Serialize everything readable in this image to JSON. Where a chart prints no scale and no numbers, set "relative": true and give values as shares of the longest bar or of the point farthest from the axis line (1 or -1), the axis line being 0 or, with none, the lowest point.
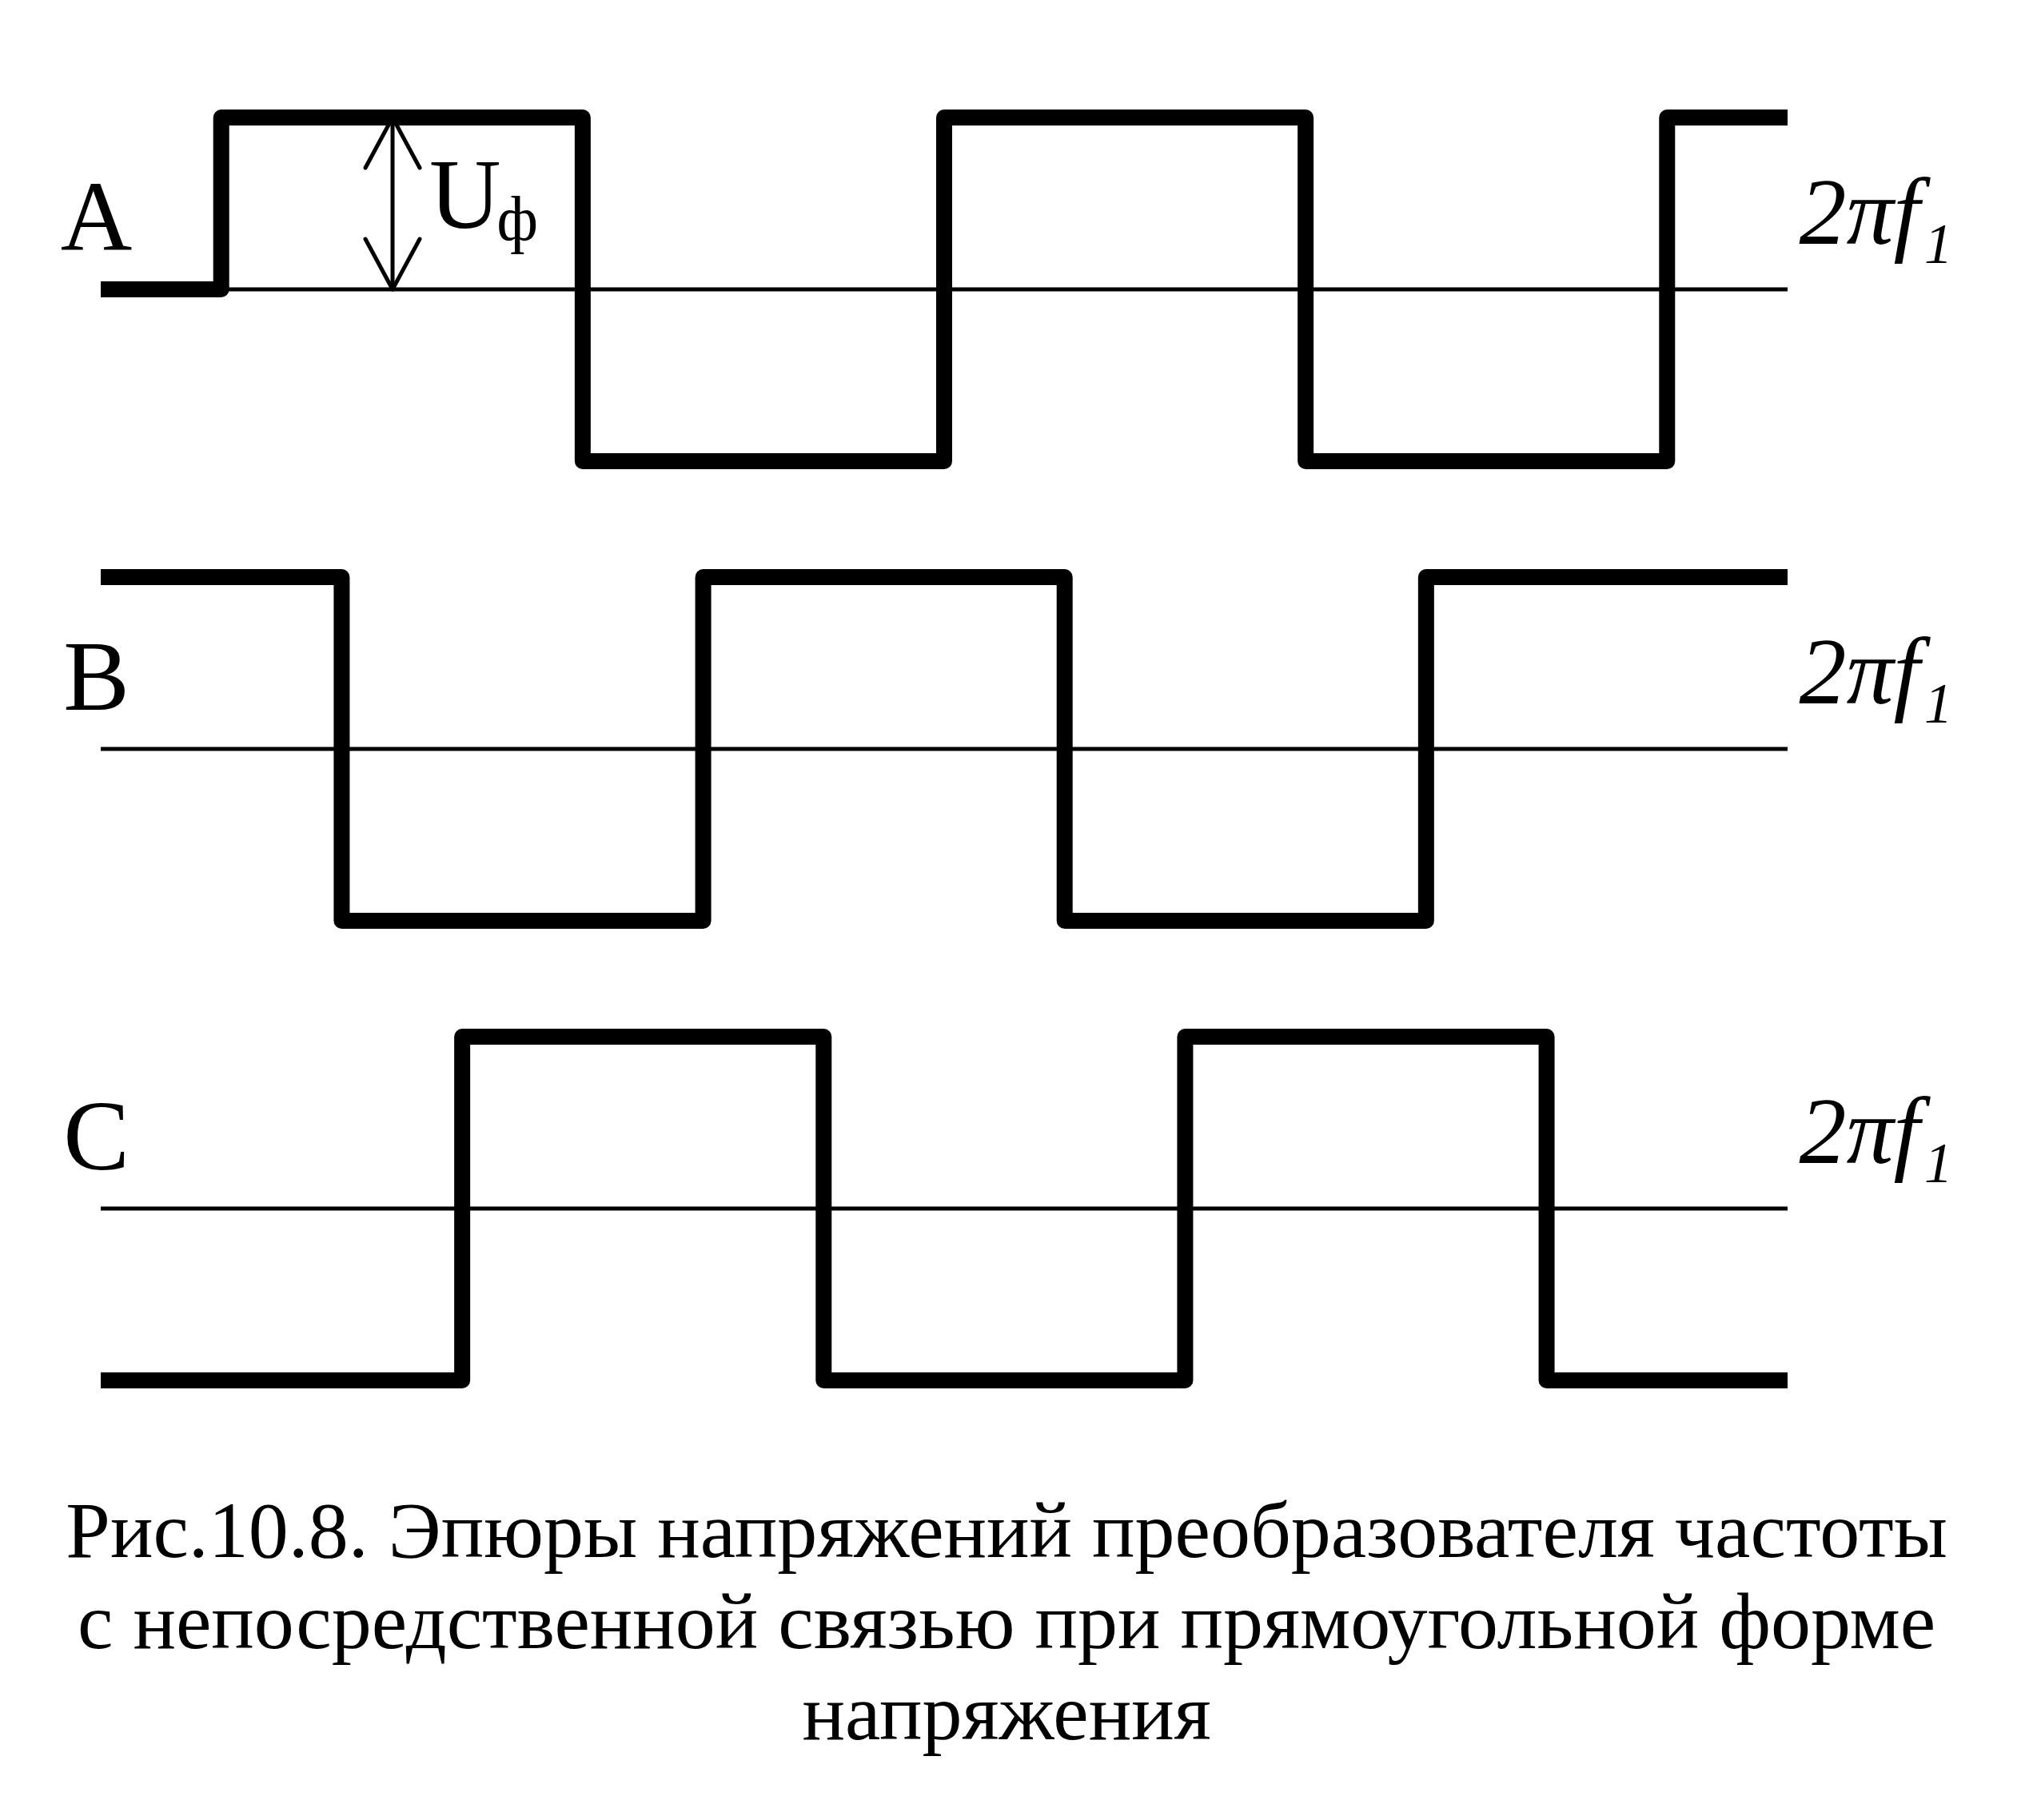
{
  "chart_data": [
    {
      "type": "step",
      "relative": true,
      "ylabel": "A",
      "xlabel": "2πf₁",
      "categories": [
        null,
        null,
        null,
        null,
        null,
        null,
        null,
        null,
        null,
        null,
        null,
        null,
        null,
        null,
        null
      ],
      "values": [
        0,
        1,
        1,
        1,
        -1,
        -1,
        -1,
        1,
        1,
        1,
        -1,
        -1,
        -1,
        1,
        1
      ],
      "color": "#000000",
      "annotations": [
        {
          "text": "U$_{ф}$",
          "y": 1
        }
      ]
    },
    {
      "type": "step",
      "relative": true,
      "ylabel": "B",
      "xlabel": "2πf₁",
      "categories": [
        null,
        null,
        null,
        null,
        null,
        null,
        null,
        null,
        null,
        null,
        null,
        null,
        null,
        null,
        null
      ],
      "values": [
        1,
        1,
        -1,
        -1,
        -1,
        1,
        1,
        1,
        -1,
        -1,
        -1,
        1,
        1,
        1,
        1
      ],
      "color": "#000000"
    },
    {
      "type": "step",
      "relative": true,
      "ylabel": "C",
      "xlabel": "2πf₁",
      "categories": [
        null,
        null,
        null,
        null,
        null,
        null,
        null,
        null,
        null,
        null,
        null,
        null,
        null,
        null,
        null
      ],
      "values": [
        -1,
        -1,
        -1,
        1,
        1,
        1,
        -1,
        -1,
        -1,
        1,
        1,
        1,
        -1,
        -1,
        -1
      ],
      "color": "#000000",
      "annotations": [
        "Рис.10.8. Эпюры напряжений преобразователя частоты с непосредственной связью при прямоугольной форме напряжения"
      ]
    }
  ]
}
